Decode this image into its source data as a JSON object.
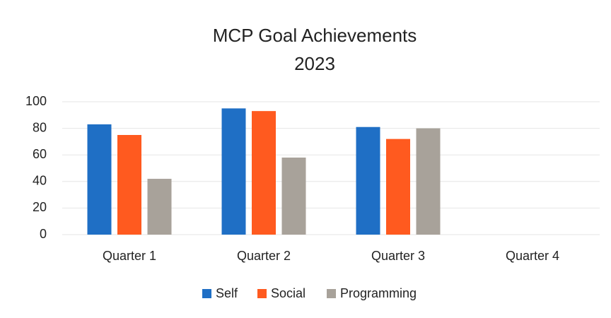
{
  "chart_data": {
    "type": "bar",
    "title": "MCP Goal Achievements",
    "subtitle": "2023",
    "categories": [
      "Quarter 1",
      "Quarter 2",
      "Quarter 3",
      "Quarter 4"
    ],
    "series": [
      {
        "name": "Self",
        "color": "#1f6fc5",
        "values": [
          83,
          95,
          81,
          null
        ]
      },
      {
        "name": "Social",
        "color": "#ff5a1f",
        "values": [
          75,
          93,
          72,
          null
        ]
      },
      {
        "name": "Programming",
        "color": "#a8a29a",
        "values": [
          42,
          58,
          80,
          null
        ]
      }
    ],
    "ylim": [
      0,
      100
    ],
    "yticks": [
      0,
      20,
      40,
      60,
      80,
      100
    ],
    "grid": true,
    "legend": "bottom"
  }
}
